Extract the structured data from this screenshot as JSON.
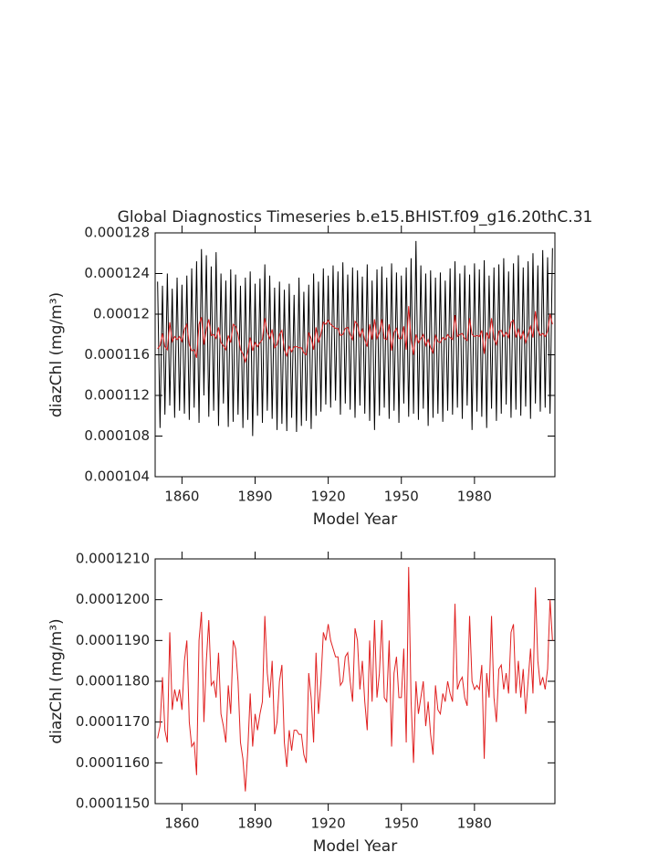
{
  "chart_data": [
    {
      "type": "line",
      "title": "Global Diagnostics Timeseries b.e15.BHIST.f09_g16.20thC.31",
      "xlabel": "Model Year",
      "ylabel": "diazChl (mg/m³)",
      "xlim": [
        1849,
        2013
      ],
      "xticks": [
        1860,
        1890,
        1920,
        1950,
        1980
      ],
      "ylim": [
        0.000104,
        0.000128
      ],
      "yticks": [
        0.000104,
        0.000108,
        0.000112,
        0.000116,
        0.00012,
        0.000124,
        0.000128
      ],
      "x": [
        1850,
        1851,
        1852,
        1853,
        1854,
        1855,
        1856,
        1857,
        1858,
        1859,
        1860,
        1861,
        1862,
        1863,
        1864,
        1865,
        1866,
        1867,
        1868,
        1869,
        1870,
        1871,
        1872,
        1873,
        1874,
        1875,
        1876,
        1877,
        1878,
        1879,
        1880,
        1881,
        1882,
        1883,
        1884,
        1885,
        1886,
        1887,
        1888,
        1889,
        1890,
        1891,
        1892,
        1893,
        1894,
        1895,
        1896,
        1897,
        1898,
        1899,
        1900,
        1901,
        1902,
        1903,
        1904,
        1905,
        1906,
        1907,
        1908,
        1909,
        1910,
        1911,
        1912,
        1913,
        1914,
        1915,
        1916,
        1917,
        1918,
        1919,
        1920,
        1921,
        1922,
        1923,
        1924,
        1925,
        1926,
        1927,
        1928,
        1929,
        1930,
        1931,
        1932,
        1933,
        1934,
        1935,
        1936,
        1937,
        1938,
        1939,
        1940,
        1941,
        1942,
        1943,
        1944,
        1945,
        1946,
        1947,
        1948,
        1949,
        1950,
        1951,
        1952,
        1953,
        1954,
        1955,
        1956,
        1957,
        1958,
        1959,
        1960,
        1961,
        1962,
        1963,
        1964,
        1965,
        1966,
        1967,
        1968,
        1969,
        1970,
        1971,
        1972,
        1973,
        1974,
        1975,
        1976,
        1977,
        1978,
        1979,
        1980,
        1981,
        1982,
        1983,
        1984,
        1985,
        1986,
        1987,
        1988,
        1989,
        1990,
        1991,
        1992,
        1993,
        1994,
        1995,
        1996,
        1997,
        1998,
        1999,
        2000,
        2001,
        2002,
        2003,
        2004,
        2005,
        2006,
        2007,
        2008,
        2009,
        2010,
        2011,
        2012
      ],
      "series": [
        {
          "color": "#000000",
          "values": [
            0.0001232,
            0.0001088,
            0.0001228,
            0.0001101,
            0.000124,
            0.000111,
            0.0001225,
            0.0001098,
            0.0001236,
            0.0001105,
            0.0001229,
            0.0001102,
            0.0001238,
            0.0001096,
            0.0001245,
            0.0001108,
            0.0001252,
            0.0001093,
            0.0001264,
            0.000112,
            0.0001258,
            0.0001099,
            0.0001247,
            0.0001105,
            0.0001261,
            0.000109,
            0.000124,
            0.0001112,
            0.0001233,
            0.0001089,
            0.0001244,
            0.0001094,
            0.0001239,
            0.0001101,
            0.0001228,
            0.0001088,
            0.0001236,
            0.0001096,
            0.0001242,
            0.000108,
            0.000123,
            0.00011,
            0.0001235,
            0.0001093,
            0.0001249,
            0.0001105,
            0.0001238,
            0.0001097,
            0.0001226,
            0.0001086,
            0.0001232,
            0.0001092,
            0.0001224,
            0.0001085,
            0.000123,
            0.0001098,
            0.0001219,
            0.0001084,
            0.0001236,
            0.000109,
            0.0001222,
            0.0001095,
            0.0001229,
            0.0001087,
            0.000124,
            0.00011,
            0.0001232,
            0.0001104,
            0.0001245,
            0.0001111,
            0.0001238,
            0.0001108,
            0.0001248,
            0.0001115,
            0.0001242,
            0.0001101,
            0.0001251,
            0.0001112,
            0.0001239,
            0.0001106,
            0.0001246,
            0.0001098,
            0.0001243,
            0.000111,
            0.0001237,
            0.0001102,
            0.0001249,
            0.0001095,
            0.0001233,
            0.0001086,
            0.0001244,
            0.00011,
            0.0001247,
            0.0001108,
            0.0001236,
            0.0001097,
            0.000125,
            0.0001105,
            0.0001241,
            0.0001093,
            0.0001238,
            0.0001112,
            0.0001246,
            0.0001099,
            0.0001255,
            0.0001102,
            0.0001272,
            0.0001096,
            0.0001248,
            0.0001107,
            0.000124,
            0.000109,
            0.0001243,
            0.0001098,
            0.0001236,
            0.0001102,
            0.0001241,
            0.0001094,
            0.0001233,
            0.0001105,
            0.0001245,
            0.0001101,
            0.0001252,
            0.0001108,
            0.000124,
            0.0001097,
            0.0001248,
            0.000111,
            0.0001239,
            0.0001086,
            0.000125,
            0.0001104,
            0.0001244,
            0.0001099,
            0.0001253,
            0.0001088,
            0.0001238,
            0.0001107,
            0.0001246,
            0.0001095,
            0.0001249,
            0.0001102,
            0.0001255,
            0.0001111,
            0.0001242,
            0.0001098,
            0.000125,
            0.0001106,
            0.0001258,
            0.00011,
            0.0001246,
            0.0001109,
            0.0001252,
            0.0001097,
            0.000126,
            0.0001112,
            0.0001248,
            0.0001104,
            0.0001263,
            0.0001108,
            0.0001256,
            0.0001102,
            0.0001265
          ]
        },
        {
          "color": "#e02020",
          "values": [
            0.0001166,
            0.0001169,
            0.0001181,
            0.0001168,
            0.0001165,
            0.0001192,
            0.0001173,
            0.0001178,
            0.0001175,
            0.0001178,
            0.0001173,
            0.0001185,
            0.000119,
            0.000117,
            0.0001164,
            0.0001165,
            0.0001157,
            0.000119,
            0.0001197,
            0.000117,
            0.0001185,
            0.0001195,
            0.0001179,
            0.000118,
            0.0001176,
            0.0001187,
            0.0001172,
            0.0001169,
            0.0001165,
            0.0001179,
            0.0001172,
            0.000119,
            0.0001188,
            0.000118,
            0.0001165,
            0.0001161,
            0.0001153,
            0.0001163,
            0.0001177,
            0.0001164,
            0.0001172,
            0.0001168,
            0.0001172,
            0.0001175,
            0.0001196,
            0.0001182,
            0.0001176,
            0.0001185,
            0.0001167,
            0.000117,
            0.000118,
            0.0001184,
            0.0001165,
            0.0001159,
            0.0001168,
            0.0001163,
            0.0001168,
            0.0001168,
            0.0001167,
            0.0001167,
            0.0001162,
            0.000116,
            0.0001182,
            0.0001176,
            0.0001165,
            0.0001187,
            0.0001172,
            0.000118,
            0.0001192,
            0.000119,
            0.0001194,
            0.000119,
            0.0001188,
            0.0001186,
            0.0001186,
            0.0001179,
            0.000118,
            0.0001186,
            0.0001187,
            0.000118,
            0.0001175,
            0.0001193,
            0.000119,
            0.0001178,
            0.0001185,
            0.0001175,
            0.0001168,
            0.000119,
            0.0001175,
            0.0001195,
            0.0001176,
            0.0001182,
            0.0001195,
            0.0001176,
            0.0001175,
            0.000119,
            0.0001164,
            0.0001182,
            0.0001186,
            0.0001176,
            0.0001176,
            0.0001188,
            0.0001165,
            0.0001208,
            0.0001175,
            0.000116,
            0.000118,
            0.0001172,
            0.0001176,
            0.000118,
            0.0001169,
            0.0001175,
            0.0001167,
            0.0001162,
            0.0001179,
            0.0001173,
            0.0001172,
            0.0001177,
            0.0001175,
            0.000118,
            0.0001177,
            0.0001175,
            0.0001199,
            0.0001178,
            0.000118,
            0.0001181,
            0.0001176,
            0.0001174,
            0.0001196,
            0.000118,
            0.0001178,
            0.0001179,
            0.0001178,
            0.0001184,
            0.0001161,
            0.0001182,
            0.0001176,
            0.0001196,
            0.0001176,
            0.000117,
            0.0001183,
            0.0001184,
            0.0001178,
            0.0001182,
            0.0001177,
            0.0001192,
            0.0001194,
            0.0001177,
            0.0001185,
            0.0001176,
            0.0001183,
            0.0001172,
            0.000118,
            0.0001188,
            0.0001177,
            0.0001203,
            0.0001185,
            0.0001179,
            0.0001181,
            0.0001178,
            0.0001183,
            0.00012,
            0.000119
          ]
        }
      ]
    },
    {
      "type": "line",
      "xlabel": "Model Year",
      "ylabel": "diazChl (mg/m³)",
      "xlim": [
        1849,
        2013
      ],
      "xticks": [
        1860,
        1890,
        1920,
        1950,
        1980
      ],
      "ylim": [
        0.000115,
        0.000121
      ],
      "yticks": [
        {
          "value": 0.000115,
          "label": "0.0001150"
        },
        {
          "value": 0.000116,
          "label": "0.0001160"
        },
        {
          "value": 0.000117,
          "label": "0.0001170"
        },
        {
          "value": 0.000118,
          "label": "0.0001180"
        },
        {
          "value": 0.000119,
          "label": "0.0001190"
        },
        {
          "value": 0.00012,
          "label": "0.0001200"
        },
        {
          "value": 0.000121,
          "label": "0.0001210"
        }
      ],
      "x": [
        1850,
        1851,
        1852,
        1853,
        1854,
        1855,
        1856,
        1857,
        1858,
        1859,
        1860,
        1861,
        1862,
        1863,
        1864,
        1865,
        1866,
        1867,
        1868,
        1869,
        1870,
        1871,
        1872,
        1873,
        1874,
        1875,
        1876,
        1877,
        1878,
        1879,
        1880,
        1881,
        1882,
        1883,
        1884,
        1885,
        1886,
        1887,
        1888,
        1889,
        1890,
        1891,
        1892,
        1893,
        1894,
        1895,
        1896,
        1897,
        1898,
        1899,
        1900,
        1901,
        1902,
        1903,
        1904,
        1905,
        1906,
        1907,
        1908,
        1909,
        1910,
        1911,
        1912,
        1913,
        1914,
        1915,
        1916,
        1917,
        1918,
        1919,
        1920,
        1921,
        1922,
        1923,
        1924,
        1925,
        1926,
        1927,
        1928,
        1929,
        1930,
        1931,
        1932,
        1933,
        1934,
        1935,
        1936,
        1937,
        1938,
        1939,
        1940,
        1941,
        1942,
        1943,
        1944,
        1945,
        1946,
        1947,
        1948,
        1949,
        1950,
        1951,
        1952,
        1953,
        1954,
        1955,
        1956,
        1957,
        1958,
        1959,
        1960,
        1961,
        1962,
        1963,
        1964,
        1965,
        1966,
        1967,
        1968,
        1969,
        1970,
        1971,
        1972,
        1973,
        1974,
        1975,
        1976,
        1977,
        1978,
        1979,
        1980,
        1981,
        1982,
        1983,
        1984,
        1985,
        1986,
        1987,
        1988,
        1989,
        1990,
        1991,
        1992,
        1993,
        1994,
        1995,
        1996,
        1997,
        1998,
        1999,
        2000,
        2001,
        2002,
        2003,
        2004,
        2005,
        2006,
        2007,
        2008,
        2009,
        2010,
        2011,
        2012
      ],
      "series": [
        {
          "color": "#e02020",
          "values": [
            0.0001166,
            0.0001169,
            0.0001181,
            0.0001168,
            0.0001165,
            0.0001192,
            0.0001173,
            0.0001178,
            0.0001175,
            0.0001178,
            0.0001173,
            0.0001185,
            0.000119,
            0.000117,
            0.0001164,
            0.0001165,
            0.0001157,
            0.000119,
            0.0001197,
            0.000117,
            0.0001185,
            0.0001195,
            0.0001179,
            0.000118,
            0.0001176,
            0.0001187,
            0.0001172,
            0.0001169,
            0.0001165,
            0.0001179,
            0.0001172,
            0.000119,
            0.0001188,
            0.000118,
            0.0001165,
            0.0001161,
            0.0001153,
            0.0001163,
            0.0001177,
            0.0001164,
            0.0001172,
            0.0001168,
            0.0001172,
            0.0001175,
            0.0001196,
            0.0001182,
            0.0001176,
            0.0001185,
            0.0001167,
            0.000117,
            0.000118,
            0.0001184,
            0.0001165,
            0.0001159,
            0.0001168,
            0.0001163,
            0.0001168,
            0.0001168,
            0.0001167,
            0.0001167,
            0.0001162,
            0.000116,
            0.0001182,
            0.0001176,
            0.0001165,
            0.0001187,
            0.0001172,
            0.000118,
            0.0001192,
            0.000119,
            0.0001194,
            0.000119,
            0.0001188,
            0.0001186,
            0.0001186,
            0.0001179,
            0.000118,
            0.0001186,
            0.0001187,
            0.000118,
            0.0001175,
            0.0001193,
            0.000119,
            0.0001178,
            0.0001185,
            0.0001175,
            0.0001168,
            0.000119,
            0.0001175,
            0.0001195,
            0.0001176,
            0.0001182,
            0.0001195,
            0.0001176,
            0.0001175,
            0.000119,
            0.0001164,
            0.0001182,
            0.0001186,
            0.0001176,
            0.0001176,
            0.0001188,
            0.0001165,
            0.0001208,
            0.0001175,
            0.000116,
            0.000118,
            0.0001172,
            0.0001176,
            0.000118,
            0.0001169,
            0.0001175,
            0.0001167,
            0.0001162,
            0.0001179,
            0.0001173,
            0.0001172,
            0.0001177,
            0.0001175,
            0.000118,
            0.0001177,
            0.0001175,
            0.0001199,
            0.0001178,
            0.000118,
            0.0001181,
            0.0001176,
            0.0001174,
            0.0001196,
            0.000118,
            0.0001178,
            0.0001179,
            0.0001178,
            0.0001184,
            0.0001161,
            0.0001182,
            0.0001176,
            0.0001196,
            0.0001176,
            0.000117,
            0.0001183,
            0.0001184,
            0.0001178,
            0.0001182,
            0.0001177,
            0.0001192,
            0.0001194,
            0.0001177,
            0.0001185,
            0.0001176,
            0.0001183,
            0.0001172,
            0.000118,
            0.0001188,
            0.0001177,
            0.0001203,
            0.0001185,
            0.0001179,
            0.0001181,
            0.0001178,
            0.0001183,
            0.00012,
            0.000119
          ]
        }
      ]
    }
  ]
}
